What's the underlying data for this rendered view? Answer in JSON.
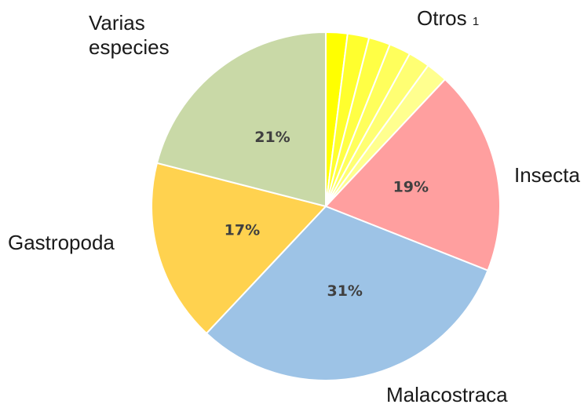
{
  "chart_data": {
    "type": "pie",
    "categories": [
      null,
      null,
      null,
      null,
      null,
      null,
      "Insecta",
      "Malacostraca",
      "Gastropoda",
      "Varias especies"
    ],
    "values": [
      2,
      2,
      2,
      2,
      2,
      2,
      19,
      31,
      17,
      21
    ],
    "value_labels": [
      null,
      null,
      null,
      null,
      null,
      null,
      "19%",
      "31%",
      "17%",
      "21%"
    ],
    "colors": [
      "#ffff00",
      "#ffff2e",
      "#ffff45",
      "#ffff5c",
      "#ffff73",
      "#ffff8f",
      "#ff9f9f",
      "#9dc3e6",
      "#ffd24f",
      "#c9d9a7"
    ],
    "annotations": [
      {
        "text": "Otros",
        "note": "1"
      }
    ]
  }
}
